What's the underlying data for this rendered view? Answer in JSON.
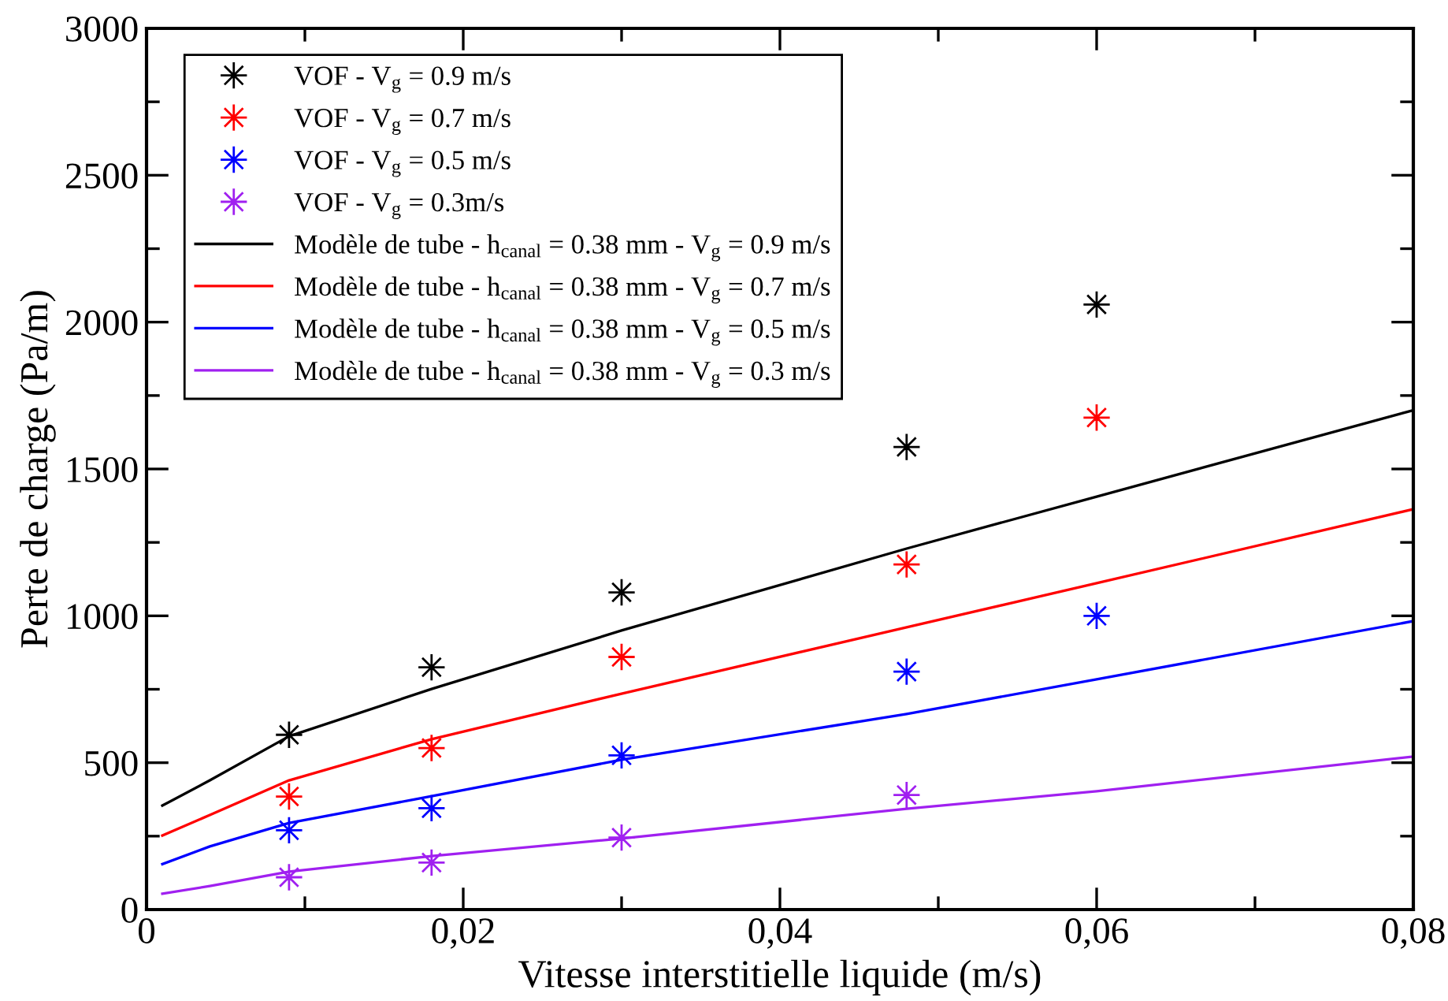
{
  "chart_data": {
    "type": "scatter",
    "xlabel": "Vitesse interstitielle liquide (m/s)",
    "ylabel": "Perte de charge (Pa/m)",
    "xlim": [
      0,
      0.08
    ],
    "ylim": [
      0,
      3000
    ],
    "xticks": [
      {
        "value": 0,
        "label": "0"
      },
      {
        "value": 0.01,
        "label": null
      },
      {
        "value": 0.02,
        "label": "0,02"
      },
      {
        "value": 0.03,
        "label": null
      },
      {
        "value": 0.04,
        "label": "0,04"
      },
      {
        "value": 0.05,
        "label": null
      },
      {
        "value": 0.06,
        "label": "0,06"
      },
      {
        "value": 0.07,
        "label": null
      },
      {
        "value": 0.08,
        "label": "0,08"
      }
    ],
    "yticks": [
      0,
      {
        "value": 250,
        "label": null
      },
      500,
      {
        "value": 750,
        "label": null
      },
      1000,
      {
        "value": 1250,
        "label": null
      },
      1500,
      {
        "value": 1750,
        "label": null
      },
      2000,
      {
        "value": 2250,
        "label": null
      },
      2500,
      {
        "value": 2750,
        "label": null
      },
      3000
    ],
    "x": [
      0.009,
      0.018,
      0.03,
      0.048,
      0.06
    ],
    "marker": "star",
    "grid": false,
    "legend": "top left",
    "series": [
      {
        "name": "VOF - V$_{g}$ = 0.9 m/s",
        "color": "#000000",
        "values": [
          595,
          825,
          1080,
          1575,
          2060
        ]
      },
      {
        "name": "VOF - V$_{g}$ = 0.7 m/s",
        "color": "#ff0000",
        "values": [
          385,
          550,
          860,
          1175,
          1675
        ]
      },
      {
        "name": "VOF - V$_{g}$ = 0.5 m/s",
        "color": "#0000ff",
        "values": [
          270,
          345,
          525,
          810,
          1000
        ]
      },
      {
        "name": "VOF - V$_{g}$ = 0.3m/s",
        "color": "#a020f0",
        "values": [
          110,
          160,
          245,
          390,
          null
        ]
      },
      {
        "name": "Modèle de tube - h$_{canal}$ = 0.38 mm - V$_{g}$ = 0.9 m/s",
        "type": "line",
        "marker": "none",
        "line_style": "solid",
        "color": "#000000",
        "x": [
          0.001,
          0.004,
          0.009,
          0.018,
          0.03,
          0.048,
          0.06,
          0.08
        ],
        "values": [
          354,
          440,
          590,
          751,
          950,
          1229,
          1406,
          1700
        ]
      },
      {
        "name": "Modèle de tube - h$_{canal}$ = 0.38 mm - V$_{g}$ = 0.7 m/s",
        "type": "line",
        "marker": "none",
        "line_style": "solid",
        "color": "#ff0000",
        "x": [
          0.001,
          0.004,
          0.009,
          0.018,
          0.03,
          0.048,
          0.06,
          0.08
        ],
        "values": [
          252,
          322,
          440,
          580,
          735,
          961,
          1111,
          1363
        ]
      },
      {
        "name": "Modèle de tube - h$_{canal}$ = 0.38 mm - V$_{g}$ = 0.5 m/s",
        "type": "line",
        "marker": "none",
        "line_style": "solid",
        "color": "#0000ff",
        "x": [
          0.001,
          0.004,
          0.009,
          0.018,
          0.03,
          0.048,
          0.06,
          0.08
        ],
        "values": [
          155,
          215,
          295,
          386,
          510,
          666,
          784,
          982
        ]
      },
      {
        "name": "Modèle de tube - h$_{canal}$ = 0.38 mm - V$_{g}$ = 0.3 m/s",
        "type": "line",
        "marker": "none",
        "line_style": "solid",
        "color": "#a020f0",
        "x": [
          0.001,
          0.004,
          0.009,
          0.018,
          0.03,
          0.048,
          0.06,
          0.08
        ],
        "values": [
          54,
          80,
          129,
          182,
          242,
          343,
          403,
          521
        ]
      }
    ]
  }
}
